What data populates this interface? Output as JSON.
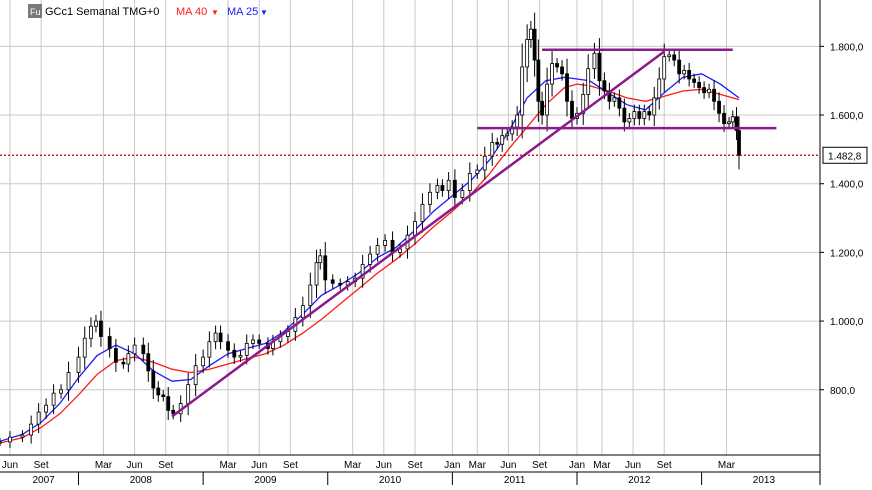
{
  "legend": {
    "badge": "Fu",
    "symbol": "GCc1 Semanal TMG+0",
    "ma40": "MA 40",
    "ma25": "MA 25",
    "dropdown_glyph": "▼"
  },
  "colors": {
    "background": "#ffffff",
    "grid": "#c8c8c8",
    "candle": "#000000",
    "ma40": "#ff1a1a",
    "ma25": "#1a1aff",
    "trendline": "#8b1a8b",
    "last_price_line": "#b00000",
    "axis_text": "#000000",
    "badge_bg": "#7a7a7a"
  },
  "chart_data": {
    "type": "line",
    "title": "GCc1 Semanal TMG+0",
    "y_axis": {
      "ticks": [
        "800,0",
        "1.000,0",
        "1.200,0",
        "1.400,0",
        "1.600,0",
        "1.800,0"
      ],
      "tick_values": [
        800,
        1000,
        1200,
        1400,
        1600,
        1800
      ],
      "ylim": [
        610,
        1935
      ]
    },
    "x_axis": {
      "month_ticks": [
        {
          "label": "Jun",
          "t": 2007.45
        },
        {
          "label": "Set",
          "t": 2007.7
        },
        {
          "label": "Mar",
          "t": 2008.2
        },
        {
          "label": "Jun",
          "t": 2008.45
        },
        {
          "label": "Set",
          "t": 2008.7
        },
        {
          "label": "Mar",
          "t": 2009.2
        },
        {
          "label": "Jun",
          "t": 2009.45
        },
        {
          "label": "Set",
          "t": 2009.7
        },
        {
          "label": "Mar",
          "t": 2010.2
        },
        {
          "label": "Jun",
          "t": 2010.45
        },
        {
          "label": "Set",
          "t": 2010.7
        },
        {
          "label": "Jan",
          "t": 2011.0
        },
        {
          "label": "Mar",
          "t": 2011.2
        },
        {
          "label": "Jun",
          "t": 2011.45
        },
        {
          "label": "Set",
          "t": 2011.7
        },
        {
          "label": "Jan",
          "t": 2012.0
        },
        {
          "label": "Mar",
          "t": 2012.2
        },
        {
          "label": "Jun",
          "t": 2012.45
        },
        {
          "label": "Set",
          "t": 2012.7
        },
        {
          "label": "Mar",
          "t": 2013.2
        }
      ],
      "years": [
        {
          "label": "2007",
          "t": 2007.72
        },
        {
          "label": "2008",
          "t": 2008.5
        },
        {
          "label": "2009",
          "t": 2009.5
        },
        {
          "label": "2010",
          "t": 2010.5
        },
        {
          "label": "2011",
          "t": 2011.5
        },
        {
          "label": "2012",
          "t": 2012.5
        },
        {
          "label": "2013",
          "t": 2013.5
        }
      ],
      "xlim": [
        2007.37,
        2013.95
      ]
    },
    "last_price": {
      "value": 1482.8,
      "label": "1.482,8"
    },
    "series": [
      {
        "name": "GCc1",
        "kind": "candlestick-approx",
        "points": [
          [
            2007.37,
            648
          ],
          [
            2007.45,
            662
          ],
          [
            2007.55,
            668
          ],
          [
            2007.62,
            700
          ],
          [
            2007.68,
            735
          ],
          [
            2007.74,
            755
          ],
          [
            2007.8,
            790
          ],
          [
            2007.86,
            800
          ],
          [
            2007.92,
            850
          ],
          [
            2008.0,
            895
          ],
          [
            2008.05,
            950
          ],
          [
            2008.1,
            985
          ],
          [
            2008.14,
            1000
          ],
          [
            2008.18,
            955
          ],
          [
            2008.25,
            920
          ],
          [
            2008.3,
            880
          ],
          [
            2008.36,
            875
          ],
          [
            2008.4,
            905
          ],
          [
            2008.45,
            930
          ],
          [
            2008.52,
            905
          ],
          [
            2008.56,
            855
          ],
          [
            2008.6,
            805
          ],
          [
            2008.64,
            785
          ],
          [
            2008.68,
            780
          ],
          [
            2008.72,
            740
          ],
          [
            2008.76,
            730
          ],
          [
            2008.82,
            760
          ],
          [
            2008.88,
            815
          ],
          [
            2008.94,
            870
          ],
          [
            2009.0,
            895
          ],
          [
            2009.05,
            940
          ],
          [
            2009.1,
            965
          ],
          [
            2009.14,
            940
          ],
          [
            2009.2,
            915
          ],
          [
            2009.25,
            895
          ],
          [
            2009.3,
            900
          ],
          [
            2009.35,
            935
          ],
          [
            2009.4,
            945
          ],
          [
            2009.45,
            935
          ],
          [
            2009.52,
            920
          ],
          [
            2009.56,
            940
          ],
          [
            2009.62,
            955
          ],
          [
            2009.68,
            970
          ],
          [
            2009.74,
            1010
          ],
          [
            2009.8,
            1045
          ],
          [
            2009.86,
            1105
          ],
          [
            2009.91,
            1170
          ],
          [
            2009.94,
            1190
          ],
          [
            2009.98,
            1120
          ],
          [
            2010.04,
            1110
          ],
          [
            2010.1,
            1105
          ],
          [
            2010.16,
            1115
          ],
          [
            2010.22,
            1125
          ],
          [
            2010.28,
            1165
          ],
          [
            2010.34,
            1195
          ],
          [
            2010.4,
            1220
          ],
          [
            2010.46,
            1235
          ],
          [
            2010.52,
            1200
          ],
          [
            2010.58,
            1210
          ],
          [
            2010.64,
            1250
          ],
          [
            2010.7,
            1290
          ],
          [
            2010.76,
            1340
          ],
          [
            2010.82,
            1375
          ],
          [
            2010.88,
            1395
          ],
          [
            2010.92,
            1380
          ],
          [
            2010.97,
            1410
          ],
          [
            2011.02,
            1360
          ],
          [
            2011.08,
            1380
          ],
          [
            2011.14,
            1430
          ],
          [
            2011.2,
            1440
          ],
          [
            2011.26,
            1480
          ],
          [
            2011.32,
            1520
          ],
          [
            2011.36,
            1515
          ],
          [
            2011.4,
            1540
          ],
          [
            2011.44,
            1545
          ],
          [
            2011.48,
            1565
          ],
          [
            2011.52,
            1600
          ],
          [
            2011.56,
            1740
          ],
          [
            2011.6,
            1820
          ],
          [
            2011.63,
            1850
          ],
          [
            2011.66,
            1760
          ],
          [
            2011.69,
            1640
          ],
          [
            2011.72,
            1600
          ],
          [
            2011.76,
            1690
          ],
          [
            2011.8,
            1750
          ],
          [
            2011.84,
            1740
          ],
          [
            2011.88,
            1720
          ],
          [
            2011.92,
            1640
          ],
          [
            2011.96,
            1590
          ],
          [
            2012.0,
            1605
          ],
          [
            2012.05,
            1660
          ],
          [
            2012.09,
            1735
          ],
          [
            2012.14,
            1780
          ],
          [
            2012.18,
            1700
          ],
          [
            2012.22,
            1670
          ],
          [
            2012.26,
            1640
          ],
          [
            2012.3,
            1650
          ],
          [
            2012.34,
            1620
          ],
          [
            2012.38,
            1580
          ],
          [
            2012.42,
            1590
          ],
          [
            2012.46,
            1610
          ],
          [
            2012.5,
            1590
          ],
          [
            2012.54,
            1610
          ],
          [
            2012.58,
            1600
          ],
          [
            2012.62,
            1650
          ],
          [
            2012.66,
            1705
          ],
          [
            2012.7,
            1770
          ],
          [
            2012.74,
            1775
          ],
          [
            2012.78,
            1760
          ],
          [
            2012.82,
            1720
          ],
          [
            2012.86,
            1730
          ],
          [
            2012.9,
            1705
          ],
          [
            2012.94,
            1695
          ],
          [
            2012.98,
            1680
          ],
          [
            2013.02,
            1665
          ],
          [
            2013.06,
            1675
          ],
          [
            2013.1,
            1640
          ],
          [
            2013.14,
            1605
          ],
          [
            2013.18,
            1575
          ],
          [
            2013.22,
            1580
          ],
          [
            2013.25,
            1595
          ],
          [
            2013.28,
            1555
          ],
          [
            2013.3,
            1482.8
          ]
        ]
      },
      {
        "name": "MA 40",
        "points": [
          [
            2007.37,
            645
          ],
          [
            2007.55,
            660
          ],
          [
            2007.7,
            690
          ],
          [
            2007.85,
            730
          ],
          [
            2008.0,
            785
          ],
          [
            2008.15,
            845
          ],
          [
            2008.3,
            885
          ],
          [
            2008.45,
            895
          ],
          [
            2008.6,
            880
          ],
          [
            2008.75,
            860
          ],
          [
            2008.9,
            850
          ],
          [
            2009.05,
            860
          ],
          [
            2009.2,
            875
          ],
          [
            2009.35,
            890
          ],
          [
            2009.5,
            905
          ],
          [
            2009.65,
            930
          ],
          [
            2009.8,
            965
          ],
          [
            2009.95,
            1005
          ],
          [
            2010.1,
            1050
          ],
          [
            2010.25,
            1095
          ],
          [
            2010.4,
            1140
          ],
          [
            2010.55,
            1180
          ],
          [
            2010.7,
            1225
          ],
          [
            2010.85,
            1275
          ],
          [
            2011.0,
            1320
          ],
          [
            2011.15,
            1370
          ],
          [
            2011.3,
            1430
          ],
          [
            2011.45,
            1500
          ],
          [
            2011.6,
            1565
          ],
          [
            2011.75,
            1630
          ],
          [
            2011.9,
            1680
          ],
          [
            2012.0,
            1690
          ],
          [
            2012.1,
            1685
          ],
          [
            2012.25,
            1670
          ],
          [
            2012.4,
            1650
          ],
          [
            2012.55,
            1640
          ],
          [
            2012.7,
            1655
          ],
          [
            2012.85,
            1670
          ],
          [
            2013.0,
            1675
          ],
          [
            2013.15,
            1660
          ],
          [
            2013.3,
            1645
          ]
        ]
      },
      {
        "name": "MA 25",
        "points": [
          [
            2007.37,
            650
          ],
          [
            2007.55,
            670
          ],
          [
            2007.7,
            705
          ],
          [
            2007.85,
            760
          ],
          [
            2008.0,
            835
          ],
          [
            2008.15,
            900
          ],
          [
            2008.3,
            930
          ],
          [
            2008.45,
            905
          ],
          [
            2008.6,
            855
          ],
          [
            2008.75,
            825
          ],
          [
            2008.9,
            830
          ],
          [
            2009.05,
            870
          ],
          [
            2009.2,
            905
          ],
          [
            2009.35,
            920
          ],
          [
            2009.5,
            935
          ],
          [
            2009.65,
            970
          ],
          [
            2009.8,
            1020
          ],
          [
            2009.95,
            1075
          ],
          [
            2010.1,
            1105
          ],
          [
            2010.25,
            1140
          ],
          [
            2010.4,
            1185
          ],
          [
            2010.55,
            1215
          ],
          [
            2010.7,
            1265
          ],
          [
            2010.85,
            1320
          ],
          [
            2011.0,
            1365
          ],
          [
            2011.15,
            1410
          ],
          [
            2011.3,
            1470
          ],
          [
            2011.45,
            1550
          ],
          [
            2011.6,
            1650
          ],
          [
            2011.75,
            1700
          ],
          [
            2011.9,
            1710
          ],
          [
            2012.0,
            1705
          ],
          [
            2012.1,
            1700
          ],
          [
            2012.25,
            1665
          ],
          [
            2012.4,
            1630
          ],
          [
            2012.55,
            1615
          ],
          [
            2012.7,
            1665
          ],
          [
            2012.85,
            1710
          ],
          [
            2013.0,
            1720
          ],
          [
            2013.15,
            1690
          ],
          [
            2013.3,
            1650
          ]
        ]
      }
    ],
    "trendlines": [
      {
        "name": "support-trendline",
        "from": [
          2008.75,
          722
        ],
        "to": [
          2012.7,
          1785
        ]
      },
      {
        "name": "resistance-horizontal",
        "from": [
          2011.72,
          1790
        ],
        "to": [
          2013.25,
          1790
        ]
      },
      {
        "name": "support-horizontal",
        "from": [
          2011.2,
          1562
        ],
        "to": [
          2013.6,
          1562
        ]
      }
    ],
    "grid": true,
    "legend_position": "top-left"
  }
}
